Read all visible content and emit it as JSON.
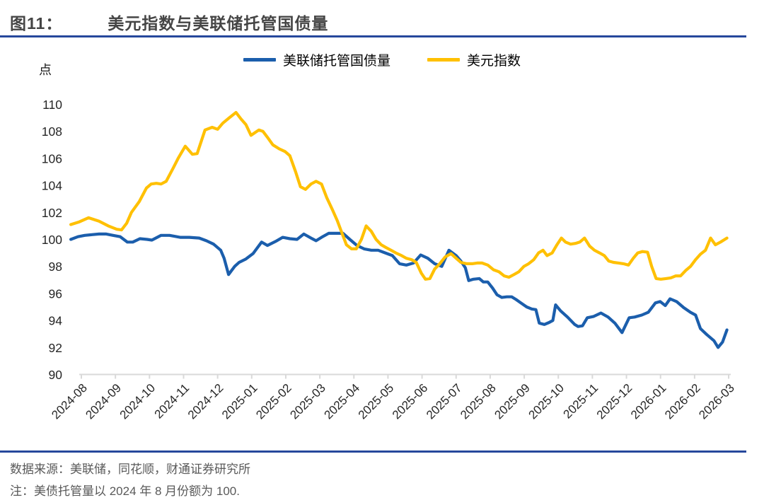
{
  "header": {
    "figure_label": "图11：",
    "title": "美元指数与美联储托管国债量"
  },
  "colors": {
    "accent_blue": "#26489C",
    "line_blue": "#1B5EAC",
    "line_yellow": "#FFC000",
    "axis_gray": "#D9D9D9",
    "tick_text": "#262626",
    "footer_text": "#595959"
  },
  "chart_data": {
    "type": "line",
    "unit_label": "点",
    "grid": false,
    "legend_position": "top-center",
    "y_axis": {
      "min": 90,
      "max": 110,
      "tick_step": 2,
      "ticks": [
        110,
        108,
        106,
        104,
        102,
        100,
        98,
        96,
        94,
        92,
        90
      ]
    },
    "x_axis": {
      "tick_labels": [
        "2024-08",
        "2024-09",
        "2024-10",
        "2024-11",
        "2024-12",
        "2025-01",
        "2025-02",
        "2025-03",
        "2025-04",
        "2025-05",
        "2025-06",
        "2025-07",
        "2025-08",
        "2025-09",
        "2025-10",
        "2025-11",
        "2025-12",
        "2026-01",
        "2026-02",
        "2026-03"
      ]
    },
    "legend": [
      {
        "name": "美联储托管国债量",
        "color": "#1B5EAC"
      },
      {
        "name": "美元指数",
        "color": "#FFC000"
      }
    ],
    "series": [
      {
        "name": "美联储托管国债量",
        "color": "#1B5EAC",
        "points": [
          [
            -0.31,
            100.0
          ],
          [
            -0.1,
            100.2
          ],
          [
            0.1,
            100.3
          ],
          [
            0.31,
            100.35
          ],
          [
            0.52,
            100.4
          ],
          [
            0.73,
            100.4
          ],
          [
            0.93,
            100.3
          ],
          [
            1.14,
            100.2
          ],
          [
            1.35,
            99.8
          ],
          [
            1.51,
            99.8
          ],
          [
            1.72,
            100.05
          ],
          [
            1.93,
            100.0
          ],
          [
            2.07,
            99.95
          ],
          [
            2.34,
            100.3
          ],
          [
            2.59,
            100.3
          ],
          [
            2.9,
            100.15
          ],
          [
            3.17,
            100.15
          ],
          [
            3.46,
            100.1
          ],
          [
            3.67,
            99.9
          ],
          [
            3.88,
            99.65
          ],
          [
            4.09,
            99.2
          ],
          [
            4.19,
            98.6
          ],
          [
            4.32,
            97.4
          ],
          [
            4.5,
            98.0
          ],
          [
            4.63,
            98.3
          ],
          [
            4.83,
            98.55
          ],
          [
            5.04,
            98.95
          ],
          [
            5.29,
            99.8
          ],
          [
            5.46,
            99.55
          ],
          [
            5.7,
            99.85
          ],
          [
            5.91,
            100.15
          ],
          [
            6.12,
            100.05
          ],
          [
            6.33,
            100.0
          ],
          [
            6.53,
            100.4
          ],
          [
            6.74,
            100.1
          ],
          [
            6.89,
            99.9
          ],
          [
            7.05,
            100.15
          ],
          [
            7.26,
            100.45
          ],
          [
            7.47,
            100.45
          ],
          [
            7.68,
            100.45
          ],
          [
            7.88,
            100.0
          ],
          [
            8.09,
            99.55
          ],
          [
            8.3,
            99.3
          ],
          [
            8.51,
            99.2
          ],
          [
            8.71,
            99.2
          ],
          [
            8.92,
            99.0
          ],
          [
            9.13,
            98.8
          ],
          [
            9.34,
            98.2
          ],
          [
            9.54,
            98.1
          ],
          [
            9.75,
            98.25
          ],
          [
            9.96,
            98.85
          ],
          [
            10.17,
            98.6
          ],
          [
            10.37,
            98.2
          ],
          [
            10.58,
            98.0
          ],
          [
            10.79,
            99.2
          ],
          [
            11.0,
            98.8
          ],
          [
            11.14,
            98.4
          ],
          [
            11.27,
            97.9
          ],
          [
            11.37,
            96.95
          ],
          [
            11.51,
            97.05
          ],
          [
            11.68,
            97.1
          ],
          [
            11.8,
            96.85
          ],
          [
            11.93,
            96.85
          ],
          [
            12.07,
            96.4
          ],
          [
            12.2,
            95.9
          ],
          [
            12.34,
            95.7
          ],
          [
            12.49,
            95.75
          ],
          [
            12.63,
            95.75
          ],
          [
            12.76,
            95.55
          ],
          [
            12.9,
            95.3
          ],
          [
            13.07,
            95.0
          ],
          [
            13.22,
            94.85
          ],
          [
            13.34,
            94.8
          ],
          [
            13.44,
            93.8
          ],
          [
            13.59,
            93.7
          ],
          [
            13.73,
            93.85
          ],
          [
            13.84,
            94.0
          ],
          [
            13.92,
            95.15
          ],
          [
            14.07,
            94.7
          ],
          [
            14.27,
            94.25
          ],
          [
            14.48,
            93.7
          ],
          [
            14.58,
            93.55
          ],
          [
            14.71,
            93.6
          ],
          [
            14.85,
            94.2
          ],
          [
            15.04,
            94.3
          ],
          [
            15.25,
            94.55
          ],
          [
            15.46,
            94.25
          ],
          [
            15.66,
            93.8
          ],
          [
            15.87,
            93.1
          ],
          [
            16.08,
            94.2
          ],
          [
            16.24,
            94.25
          ],
          [
            16.45,
            94.4
          ],
          [
            16.64,
            94.6
          ],
          [
            16.85,
            95.3
          ],
          [
            16.99,
            95.4
          ],
          [
            17.14,
            95.1
          ],
          [
            17.28,
            95.6
          ],
          [
            17.47,
            95.4
          ],
          [
            17.68,
            94.95
          ],
          [
            17.88,
            94.6
          ],
          [
            18.03,
            94.4
          ],
          [
            18.17,
            93.4
          ],
          [
            18.36,
            92.95
          ],
          [
            18.57,
            92.5
          ],
          [
            18.69,
            92.0
          ],
          [
            18.82,
            92.4
          ],
          [
            18.95,
            93.3
          ]
        ]
      },
      {
        "name": "美元指数",
        "color": "#FFC000",
        "points": [
          [
            -0.31,
            101.1
          ],
          [
            -0.06,
            101.3
          ],
          [
            0.21,
            101.6
          ],
          [
            0.52,
            101.35
          ],
          [
            0.79,
            101.0
          ],
          [
            1.04,
            100.75
          ],
          [
            1.18,
            100.7
          ],
          [
            1.33,
            101.2
          ],
          [
            1.47,
            102.0
          ],
          [
            1.7,
            102.8
          ],
          [
            1.91,
            103.8
          ],
          [
            2.05,
            104.1
          ],
          [
            2.2,
            104.15
          ],
          [
            2.34,
            104.1
          ],
          [
            2.49,
            104.3
          ],
          [
            2.7,
            105.3
          ],
          [
            2.84,
            106.0
          ],
          [
            3.05,
            106.9
          ],
          [
            3.26,
            106.3
          ],
          [
            3.4,
            106.35
          ],
          [
            3.63,
            108.1
          ],
          [
            3.84,
            108.3
          ],
          [
            4.0,
            108.15
          ],
          [
            4.15,
            108.6
          ],
          [
            4.34,
            109.0
          ],
          [
            4.54,
            109.4
          ],
          [
            4.69,
            108.9
          ],
          [
            4.83,
            108.5
          ],
          [
            4.98,
            107.7
          ],
          [
            5.21,
            108.1
          ],
          [
            5.33,
            108.0
          ],
          [
            5.48,
            107.5
          ],
          [
            5.62,
            107.0
          ],
          [
            5.81,
            106.7
          ],
          [
            5.98,
            106.5
          ],
          [
            6.12,
            106.2
          ],
          [
            6.29,
            105.0
          ],
          [
            6.43,
            103.9
          ],
          [
            6.58,
            103.7
          ],
          [
            6.74,
            104.1
          ],
          [
            6.89,
            104.3
          ],
          [
            7.05,
            104.1
          ],
          [
            7.2,
            103.1
          ],
          [
            7.37,
            102.2
          ],
          [
            7.51,
            101.4
          ],
          [
            7.66,
            100.4
          ],
          [
            7.78,
            99.6
          ],
          [
            7.93,
            99.3
          ],
          [
            8.07,
            99.3
          ],
          [
            8.22,
            100.0
          ],
          [
            8.36,
            101.0
          ],
          [
            8.51,
            100.6
          ],
          [
            8.65,
            100.0
          ],
          [
            8.8,
            99.6
          ],
          [
            8.94,
            99.4
          ],
          [
            9.09,
            99.2
          ],
          [
            9.23,
            99.0
          ],
          [
            9.4,
            98.8
          ],
          [
            9.54,
            98.6
          ],
          [
            9.69,
            98.5
          ],
          [
            9.83,
            98.3
          ],
          [
            9.98,
            97.5
          ],
          [
            10.1,
            97.05
          ],
          [
            10.23,
            97.1
          ],
          [
            10.37,
            97.8
          ],
          [
            10.52,
            98.2
          ],
          [
            10.68,
            98.7
          ],
          [
            10.85,
            98.95
          ],
          [
            11.0,
            98.6
          ],
          [
            11.14,
            98.3
          ],
          [
            11.31,
            98.2
          ],
          [
            11.47,
            98.2
          ],
          [
            11.62,
            98.25
          ],
          [
            11.76,
            98.25
          ],
          [
            11.93,
            98.1
          ],
          [
            12.1,
            97.75
          ],
          [
            12.26,
            97.6
          ],
          [
            12.41,
            97.3
          ],
          [
            12.55,
            97.2
          ],
          [
            12.7,
            97.4
          ],
          [
            12.84,
            97.6
          ],
          [
            12.99,
            98.0
          ],
          [
            13.13,
            98.2
          ],
          [
            13.28,
            98.5
          ],
          [
            13.42,
            99.0
          ],
          [
            13.55,
            99.2
          ],
          [
            13.67,
            98.8
          ],
          [
            13.82,
            99.0
          ],
          [
            13.96,
            99.6
          ],
          [
            14.09,
            100.1
          ],
          [
            14.21,
            99.8
          ],
          [
            14.36,
            99.65
          ],
          [
            14.5,
            99.7
          ],
          [
            14.63,
            99.8
          ],
          [
            14.77,
            100.1
          ],
          [
            14.92,
            99.5
          ],
          [
            15.06,
            99.2
          ],
          [
            15.21,
            99.0
          ],
          [
            15.35,
            98.8
          ],
          [
            15.48,
            98.4
          ],
          [
            15.62,
            98.3
          ],
          [
            15.77,
            98.25
          ],
          [
            15.91,
            98.2
          ],
          [
            16.06,
            98.1
          ],
          [
            16.2,
            98.6
          ],
          [
            16.33,
            99.0
          ],
          [
            16.47,
            99.1
          ],
          [
            16.62,
            99.05
          ],
          [
            16.74,
            98.0
          ],
          [
            16.87,
            97.1
          ],
          [
            17.01,
            97.05
          ],
          [
            17.16,
            97.1
          ],
          [
            17.3,
            97.15
          ],
          [
            17.45,
            97.3
          ],
          [
            17.59,
            97.3
          ],
          [
            17.74,
            97.7
          ],
          [
            17.88,
            98.0
          ],
          [
            18.03,
            98.5
          ],
          [
            18.17,
            98.9
          ],
          [
            18.32,
            99.2
          ],
          [
            18.47,
            100.1
          ],
          [
            18.61,
            99.6
          ],
          [
            18.76,
            99.8
          ],
          [
            18.95,
            100.1
          ]
        ]
      }
    ]
  },
  "footer": {
    "source": "数据来源：美联储，同花顺，财通证券研究所",
    "note": "注：美债托管量以 2024 年 8 月份额为 100."
  }
}
